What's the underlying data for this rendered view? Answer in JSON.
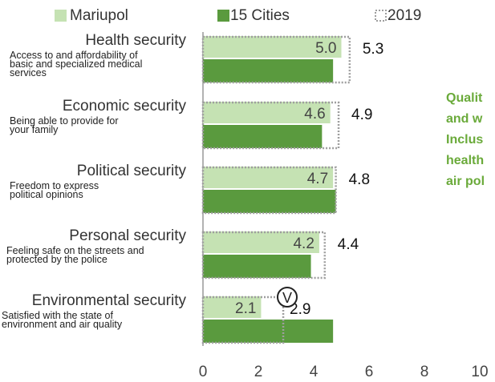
{
  "chart_data": {
    "type": "bar",
    "orientation": "horizontal",
    "categories": [
      {
        "name": "Health security",
        "desc": [
          "Access to and affordability of",
          "basic and specialized medical",
          "services"
        ]
      },
      {
        "name": "Economic security",
        "desc": [
          "Being  able  to  provide  for",
          "your family"
        ]
      },
      {
        "name": "Political security",
        "desc": [
          "Freedom       to       express",
          "political opinions"
        ]
      },
      {
        "name": "Personal security",
        "desc": [
          "Feeling safe on the streets and",
          "protected by the police"
        ]
      },
      {
        "name": "Environmental security",
        "desc": [
          "Satisfied  with  the  state  of",
          "environment and air quality"
        ]
      }
    ],
    "series": [
      {
        "name": "Mariupol",
        "values": [
          5.0,
          4.6,
          4.7,
          4.2,
          2.1
        ],
        "labels": [
          "5.0",
          "4.6",
          "4.7",
          "4.2",
          "2.1"
        ],
        "color": "#c5e2b3"
      },
      {
        "name": "15 Cities",
        "values": [
          4.7,
          4.3,
          4.8,
          3.9,
          4.7
        ],
        "color": "#5a9a3e"
      },
      {
        "name": "2019",
        "values": [
          5.3,
          4.9,
          4.8,
          4.4,
          2.9
        ],
        "labels": [
          "5.3",
          "4.9",
          "4.8",
          "4.4",
          "2.9"
        ],
        "style": "dotted outline"
      }
    ],
    "change_marker": {
      "category_index": 4,
      "symbol": "V"
    },
    "x_ticks": [
      "0",
      "2",
      "4",
      "6",
      "8",
      "10"
    ],
    "xlim": [
      0,
      10
    ],
    "legend_position": "top"
  },
  "sidebar_text": [
    "Qualit",
    "and  w",
    "Inclus",
    "health",
    "air pol"
  ],
  "colors": {
    "light": "#c5e2b3",
    "dark": "#5a9a3e",
    "sidebar": "#6aaa3a",
    "outline": "#9e9e9e"
  }
}
